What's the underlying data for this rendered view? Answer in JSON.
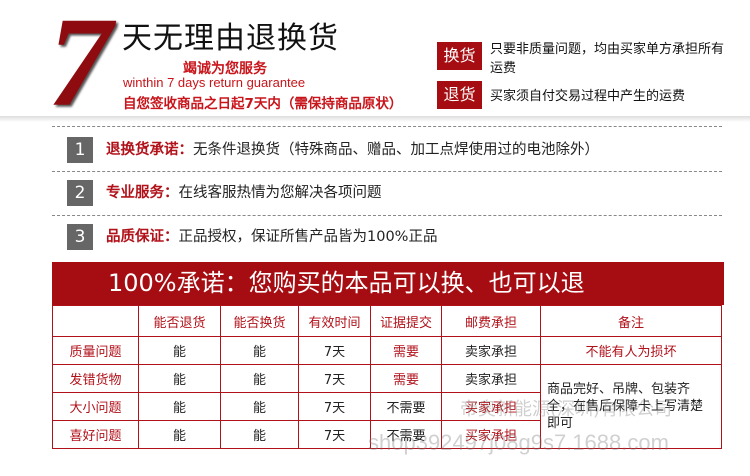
{
  "header": {
    "big_number": "7",
    "title": "天无理由退换货",
    "slogan_cn": "竭诚为您服务",
    "slogan_en": "winthin 7 days return guarantee",
    "condition": "自您签收商品之日起7天内（需保持商品原状）"
  },
  "policies": [
    {
      "badge": "换货",
      "text": "只要非质量问题，均由买家单方承担所有运费"
    },
    {
      "badge": "退货",
      "text": "买家须自付交易过程中产生的运费"
    }
  ],
  "items": [
    {
      "num": "1",
      "label": "退换货承诺：",
      "text": "无条件退换货（特殊商品、赠品、加工点焊使用过的电池除外）"
    },
    {
      "num": "2",
      "label": "专业服务：",
      "text": "在线客服热情为您解决各项问题"
    },
    {
      "num": "3",
      "label": "品质保证：",
      "text": "正品授权，保证所售产品皆为100%正品"
    }
  ],
  "banner": "100%承诺：您购买的本品可以换、也可以退",
  "table": {
    "headers": [
      "",
      "能否退货",
      "能否换货",
      "有效时间",
      "证据提交",
      "邮费承担",
      "备注"
    ],
    "rows": [
      [
        "质量问题",
        "能",
        "能",
        "7天",
        "需要",
        "卖家承担",
        "不能有人为损坏"
      ],
      [
        "发错货物",
        "能",
        "能",
        "7天",
        "需要",
        "卖家承担"
      ],
      [
        "大小问题",
        "能",
        "能",
        "7天",
        "不需要",
        "买家承担"
      ],
      [
        "喜好问题",
        "能",
        "能",
        "7天",
        "不需要",
        "买家承担"
      ]
    ],
    "merged_note": "商品完好、吊牌、包装齐全，在售后保障卡上写清楚即可"
  },
  "watermark": {
    "company": "帝奥新能源(深圳)有限公司",
    "shop": "shop392497j08g9s7.1688.com"
  },
  "colors": {
    "brand_red": "#a50d12",
    "text_red": "#b1121a",
    "number_box": "#666666"
  }
}
